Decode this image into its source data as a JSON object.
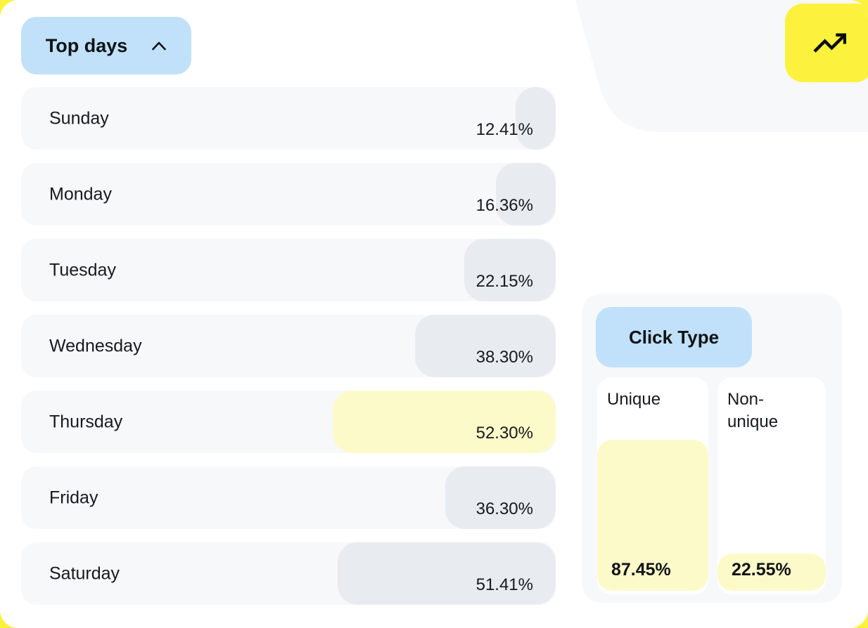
{
  "colors": {
    "page_background": "#fcf23d",
    "card_background": "#ffffff",
    "panel_gray": "#f7f8fa",
    "bar_gray": "#e8ecf0",
    "bar_yellow": "#fcfac9",
    "accent_blue": "#c0e1f9",
    "button_yellow": "#fcf23d",
    "text": "#17191c"
  },
  "top_days": {
    "title": "Top days",
    "collapse_icon": "chevron-up-icon",
    "rows": [
      {
        "label": "Sunday",
        "value": "12.41%",
        "bar_pct": 7.5,
        "highlight": false
      },
      {
        "label": "Monday",
        "value": "16.36%",
        "bar_pct": 11.2,
        "highlight": false
      },
      {
        "label": "Tuesday",
        "value": "22.15%",
        "bar_pct": 17.1,
        "highlight": false
      },
      {
        "label": "Wednesday",
        "value": "38.30%",
        "bar_pct": 26.3,
        "highlight": false
      },
      {
        "label": "Thursday",
        "value": "52.30%",
        "bar_pct": 41.7,
        "highlight": true
      },
      {
        "label": "Friday",
        "value": "36.30%",
        "bar_pct": 20.7,
        "highlight": false
      },
      {
        "label": "Saturday",
        "value": "51.41%",
        "bar_pct": 40.8,
        "highlight": false
      }
    ]
  },
  "click_type": {
    "title": "Click Type",
    "columns": [
      {
        "label": "Unique",
        "value": "87.45%",
        "fill_pct": 69.5
      },
      {
        "label": "Non-unique",
        "value": "22.55%",
        "fill_pct": 17.0
      }
    ]
  },
  "trend_button": {
    "icon": "trending-up-icon"
  },
  "chart_data": [
    {
      "type": "bar",
      "orientation": "horizontal",
      "title": "Top days",
      "categories": [
        "Sunday",
        "Monday",
        "Tuesday",
        "Wednesday",
        "Thursday",
        "Friday",
        "Saturday"
      ],
      "values": [
        12.41,
        16.36,
        22.15,
        38.3,
        52.3,
        36.3,
        51.41
      ],
      "unit": "%",
      "highlighted_category": "Thursday",
      "xlabel": "",
      "ylabel": "",
      "grid": false,
      "legend_position": "none",
      "data_labels": true
    },
    {
      "type": "bar",
      "orientation": "vertical",
      "title": "Click Type",
      "categories": [
        "Unique",
        "Non-unique"
      ],
      "values": [
        87.45,
        22.55
      ],
      "unit": "%",
      "xlabel": "",
      "ylabel": "",
      "grid": false,
      "legend_position": "none",
      "data_labels": true
    }
  ]
}
